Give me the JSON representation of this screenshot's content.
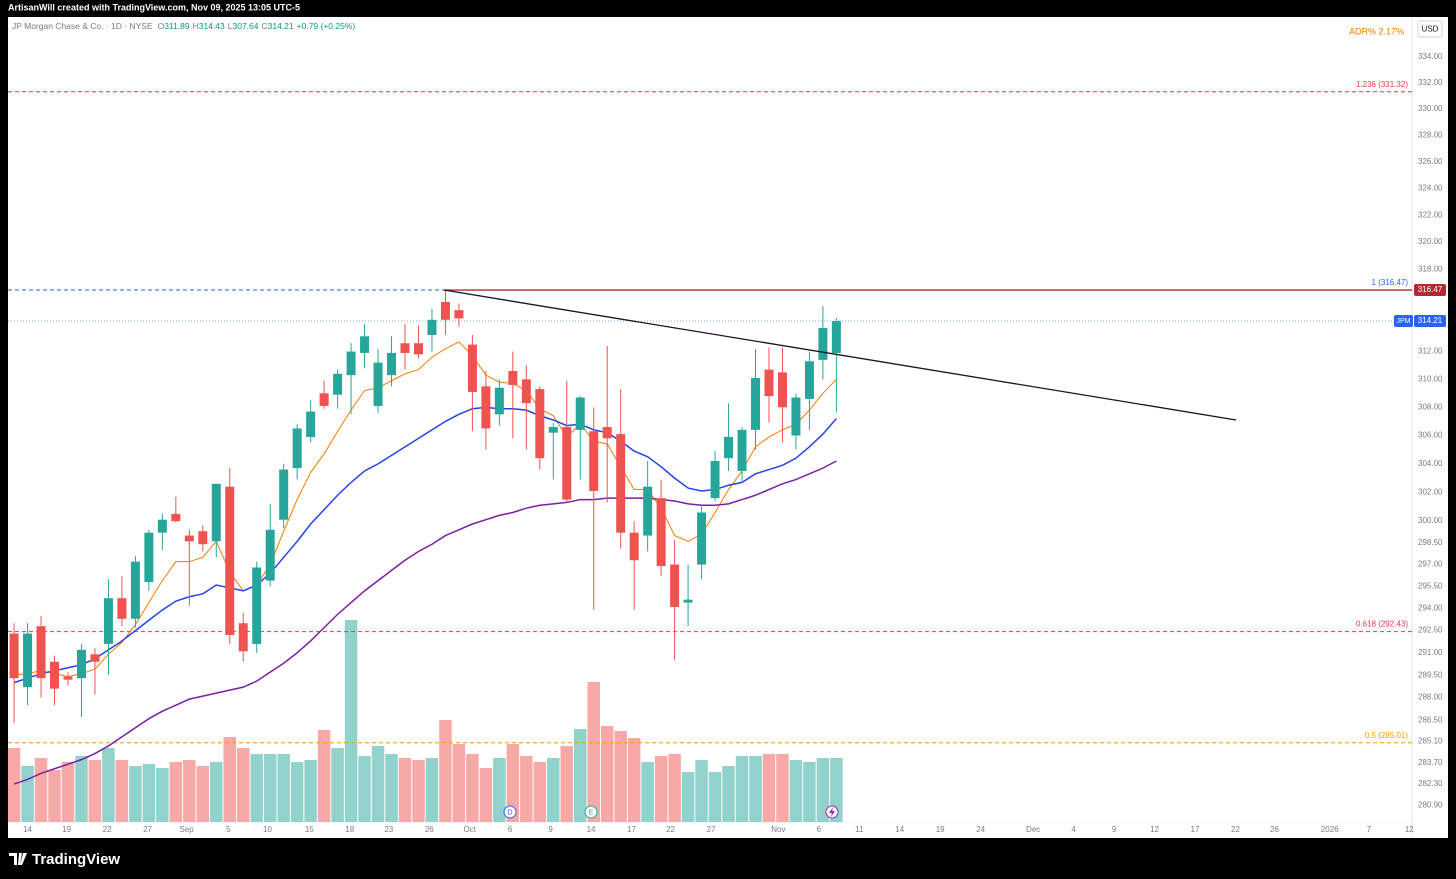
{
  "header": {
    "credit": "ArtisanWill created with TradingView.com, Nov 09, 2025 13:05 UTC-5",
    "brand": "TradingView"
  },
  "chart_data": {
    "type": "candlestick",
    "title": "JP Morgan Chase & Co. · 1D · NYSE",
    "legend": [
      {
        "key": "O",
        "value": "311.89"
      },
      {
        "key": "H",
        "value": "314.43"
      },
      {
        "key": "L",
        "value": "307.64"
      },
      {
        "key": "C",
        "value": "314.21"
      }
    ],
    "change": "+0.79 (+0.25%)",
    "currency": "USD",
    "indicator": "ADR%  2.17%",
    "symbol": "JPM",
    "up_color": "#26a69a",
    "down_color": "#ef5350",
    "log": true,
    "ylim": [
      278.8,
      337.1
    ],
    "xlim": [
      -0.45,
      103.7
    ],
    "open": [
      292.3,
      288.7,
      292.8,
      290.4,
      289.4,
      289.3,
      290.9,
      291.6,
      294.7,
      293.3,
      295.8,
      299.2,
      300.5,
      299.0,
      299.3,
      298.6,
      302.4,
      293.0,
      291.6,
      295.9,
      300.1,
      303.7,
      305.9,
      309.0,
      308.9,
      310.3,
      311.9,
      308.1,
      310.3,
      312.6,
      312.6,
      313.2,
      315.6,
      315.0,
      312.5,
      309.5,
      307.5,
      310.6,
      310.0,
      309.3,
      306.2,
      306.6,
      306.4,
      306.3,
      306.6,
      306.1,
      299.2,
      299.0,
      301.6,
      297.0,
      294.4,
      297.0,
      301.6,
      304.4,
      303.5,
      306.4,
      310.7,
      310.5,
      306.0,
      308.6,
      311.4,
      311.89
    ],
    "high": [
      293.0,
      293.0,
      293.5,
      290.8,
      289.7,
      291.6,
      291.3,
      296.0,
      296.2,
      297.6,
      299.4,
      300.5,
      301.7,
      299.4,
      299.7,
      302.6,
      303.7,
      293.7,
      297.2,
      301.2,
      304.0,
      306.8,
      308.5,
      309.9,
      310.7,
      312.6,
      314.0,
      312.2,
      313.1,
      314.0,
      313.9,
      315.1,
      316.47,
      315.5,
      313.2,
      310.6,
      310.0,
      312.0,
      311.0,
      309.5,
      306.9,
      309.9,
      308.8,
      308.0,
      312.4,
      309.3,
      300.0,
      304.2,
      302.9,
      298.7,
      297.0,
      301.1,
      304.9,
      308.3,
      306.6,
      312.2,
      312.3,
      312.3,
      309.0,
      312.0,
      315.3,
      314.43
    ],
    "low": [
      286.3,
      287.5,
      288.0,
      287.5,
      288.8,
      286.7,
      288.2,
      289.5,
      292.8,
      292.7,
      295.2,
      298.0,
      299.9,
      294.2,
      297.9,
      297.5,
      291.6,
      290.4,
      291.0,
      295.5,
      299.5,
      302.9,
      305.5,
      307.9,
      307.9,
      307.5,
      310.8,
      307.6,
      309.5,
      310.7,
      311.5,
      312.0,
      313.2,
      313.8,
      306.3,
      305.0,
      306.7,
      305.8,
      305.0,
      303.6,
      302.9,
      301.3,
      302.9,
      293.9,
      301.3,
      298.1,
      293.9,
      297.9,
      296.2,
      290.5,
      292.8,
      296.0,
      301.4,
      303.5,
      302.7,
      305.0,
      306.9,
      305.5,
      305.0,
      306.4,
      310.0,
      307.64
    ],
    "close": [
      289.3,
      292.3,
      289.3,
      288.6,
      289.2,
      291.2,
      290.4,
      294.7,
      293.3,
      297.2,
      299.2,
      300.1,
      300.0,
      298.6,
      298.4,
      302.6,
      292.2,
      291.1,
      296.8,
      299.4,
      303.6,
      306.5,
      307.7,
      308.1,
      310.4,
      312.0,
      313.1,
      311.2,
      311.9,
      311.9,
      311.8,
      314.3,
      314.3,
      314.4,
      309.1,
      306.5,
      309.4,
      309.6,
      308.3,
      304.4,
      306.6,
      301.5,
      308.7,
      302.1,
      305.8,
      299.2,
      297.3,
      302.4,
      296.9,
      294.1,
      294.6,
      300.6,
      304.2,
      305.9,
      306.4,
      310.1,
      308.8,
      308.0,
      308.7,
      311.3,
      313.7,
      314.21
    ],
    "overlays": [
      {
        "color": "#f57c00",
        "values": [
          289.5,
          289.6,
          289.8,
          289.6,
          289.4,
          289.6,
          289.9,
          290.9,
          291.7,
          292.9,
          294.4,
          295.9,
          297.2,
          297.2,
          297.5,
          298.6,
          296.5,
          295.2,
          295.6,
          297.0,
          299.3,
          301.5,
          303.4,
          304.7,
          306.3,
          307.8,
          309.2,
          309.4,
          309.9,
          310.4,
          310.7,
          311.6,
          312.2,
          312.7,
          311.7,
          310.3,
          309.8,
          309.7,
          309.2,
          307.9,
          307.4,
          305.9,
          306.8,
          305.6,
          305.4,
          303.8,
          302.2,
          302.2,
          300.9,
          299.0,
          298.6,
          299.1,
          300.6,
          302.2,
          303.5,
          305.2,
          305.9,
          306.4,
          306.8,
          307.8,
          309.0,
          310.0
        ]
      },
      {
        "color": "#2443e8",
        "values": [
          289.0,
          289.3,
          289.6,
          289.8,
          290.0,
          290.2,
          290.6,
          291.2,
          291.8,
          292.5,
          293.2,
          293.9,
          294.5,
          294.8,
          295.0,
          295.6,
          295.4,
          295.2,
          295.6,
          296.4,
          297.5,
          298.6,
          299.8,
          300.8,
          301.8,
          302.7,
          303.5,
          304.0,
          304.6,
          305.2,
          305.8,
          306.4,
          307.0,
          307.5,
          307.9,
          308.0,
          307.9,
          307.9,
          307.8,
          307.4,
          307.1,
          306.7,
          306.8,
          306.4,
          306.2,
          305.6,
          304.9,
          304.5,
          303.8,
          303.0,
          302.3,
          302.1,
          302.2,
          302.5,
          302.7,
          303.3,
          303.6,
          303.9,
          304.4,
          305.2,
          306.1,
          307.2
        ]
      },
      {
        "color": "#7b1fa2",
        "values": [
          282.3,
          282.6,
          283.0,
          283.3,
          283.6,
          283.9,
          284.3,
          284.8,
          285.4,
          286.0,
          286.6,
          287.1,
          287.5,
          287.9,
          288.1,
          288.3,
          288.5,
          288.7,
          289.1,
          289.7,
          290.3,
          291.0,
          291.8,
          292.7,
          293.6,
          294.4,
          295.2,
          295.9,
          296.6,
          297.3,
          297.9,
          298.4,
          299.0,
          299.4,
          299.8,
          300.1,
          300.4,
          300.6,
          300.9,
          301.1,
          301.2,
          301.3,
          301.5,
          301.5,
          301.6,
          301.6,
          301.6,
          301.6,
          301.5,
          301.4,
          301.2,
          301.1,
          301.1,
          301.2,
          301.5,
          301.8,
          302.2,
          302.6,
          302.9,
          303.3,
          303.7,
          304.2
        ]
      }
    ],
    "volume": {
      "values": [
        7.4,
        5.6,
        6.4,
        5.2,
        6.0,
        6.6,
        6.2,
        7.4,
        6.2,
        5.6,
        5.8,
        5.4,
        6.0,
        6.2,
        5.6,
        6.0,
        8.5,
        7.4,
        6.8,
        6.8,
        6.8,
        6.0,
        6.2,
        9.2,
        7.4,
        20.2,
        6.6,
        7.6,
        6.8,
        6.4,
        6.2,
        6.4,
        10.2,
        7.8,
        6.8,
        5.4,
        6.4,
        7.8,
        6.6,
        6.0,
        6.4,
        7.6,
        9.3,
        14.0,
        9.6,
        9.1,
        8.4,
        6.0,
        6.6,
        6.8,
        5.0,
        6.2,
        5.0,
        5.6,
        6.6,
        6.6,
        6.8,
        6.8,
        6.2,
        6.0,
        6.4,
        6.4
      ]
    },
    "fib_levels": [
      {
        "label": "1.236 (331.32)",
        "value": 331.32,
        "color": "#f23645"
      },
      {
        "label": "1 (316.47)",
        "value": 316.47,
        "color": "#2962ff"
      },
      {
        "label": "0.618 (292.43)",
        "value": 292.43,
        "color": "#f23645"
      },
      {
        "label": "0.5 (285.01)",
        "value": 285.01,
        "color": "#ff9800"
      }
    ],
    "hline": {
      "value": 316.47,
      "color": "#b22833"
    },
    "trendline": {
      "x": [
        31.9,
        90.65
      ],
      "y": [
        316.47,
        307.1
      ]
    },
    "event_icons": [
      "D",
      "E"
    ],
    "yticks": [
      {
        "value": 334,
        "label": "334.00"
      },
      {
        "value": 332,
        "label": "332.00"
      },
      {
        "value": 330,
        "label": "330.00"
      },
      {
        "value": 328,
        "label": "328.00"
      },
      {
        "value": 326,
        "label": "326.00"
      },
      {
        "value": 324,
        "label": "324.00"
      },
      {
        "value": 322,
        "label": "322.00"
      },
      {
        "value": 320,
        "label": "320.00"
      },
      {
        "value": 318,
        "label": "318.00"
      },
      {
        "value": 312,
        "label": "312.00"
      },
      {
        "value": 310,
        "label": "310.00"
      },
      {
        "value": 308,
        "label": "308.00"
      },
      {
        "value": 306,
        "label": "306.00"
      },
      {
        "value": 304,
        "label": "304.00"
      },
      {
        "value": 302,
        "label": "302.00"
      },
      {
        "value": 300,
        "label": "300.00"
      },
      {
        "value": 298.5,
        "label": "298.50"
      },
      {
        "value": 297,
        "label": "297.00"
      },
      {
        "value": 295.5,
        "label": "295.50"
      },
      {
        "value": 294,
        "label": "294.00"
      },
      {
        "value": 292.5,
        "label": "292.50"
      },
      {
        "value": 291,
        "label": "291.00"
      },
      {
        "value": 289.5,
        "label": "289.50"
      },
      {
        "value": 288,
        "label": "288.00"
      },
      {
        "value": 286.5,
        "label": "286.50"
      },
      {
        "value": 285.1,
        "label": "285.10"
      },
      {
        "value": 283.7,
        "label": "283.70"
      },
      {
        "value": 282.3,
        "label": "282.30"
      },
      {
        "value": 280.9,
        "label": "280.90"
      }
    ],
    "xticks": [
      {
        "value": 1.0,
        "label": "14"
      },
      {
        "value": 3.9,
        "label": "19"
      },
      {
        "value": 6.9,
        "label": "22"
      },
      {
        "value": 9.9,
        "label": "27"
      },
      {
        "value": 12.8,
        "label": "Sep"
      },
      {
        "value": 15.9,
        "label": "5"
      },
      {
        "value": 18.8,
        "label": "10"
      },
      {
        "value": 21.9,
        "label": "15"
      },
      {
        "value": 24.9,
        "label": "18"
      },
      {
        "value": 27.8,
        "label": "23"
      },
      {
        "value": 30.8,
        "label": "26"
      },
      {
        "value": 33.8,
        "label": "Oct"
      },
      {
        "value": 36.8,
        "label": "6"
      },
      {
        "value": 39.8,
        "label": "9"
      },
      {
        "value": 42.8,
        "label": "14"
      },
      {
        "value": 45.8,
        "label": "17"
      },
      {
        "value": 48.7,
        "label": "22"
      },
      {
        "value": 51.7,
        "label": "27"
      },
      {
        "value": 56.7,
        "label": "Nov"
      },
      {
        "value": 59.7,
        "label": "6"
      },
      {
        "value": 62.7,
        "label": "11"
      },
      {
        "value": 65.7,
        "label": "14"
      },
      {
        "value": 68.7,
        "label": "19"
      },
      {
        "value": 71.7,
        "label": "24"
      },
      {
        "value": 75.6,
        "label": "Dec"
      },
      {
        "value": 78.6,
        "label": "4"
      },
      {
        "value": 81.6,
        "label": "9"
      },
      {
        "value": 84.6,
        "label": "12"
      },
      {
        "value": 87.6,
        "label": "17"
      },
      {
        "value": 90.6,
        "label": "22"
      },
      {
        "value": 93.5,
        "label": "26"
      },
      {
        "value": 97.6,
        "label": "2026"
      },
      {
        "value": 100.5,
        "label": "7"
      },
      {
        "value": 103.5,
        "label": "12"
      }
    ]
  }
}
